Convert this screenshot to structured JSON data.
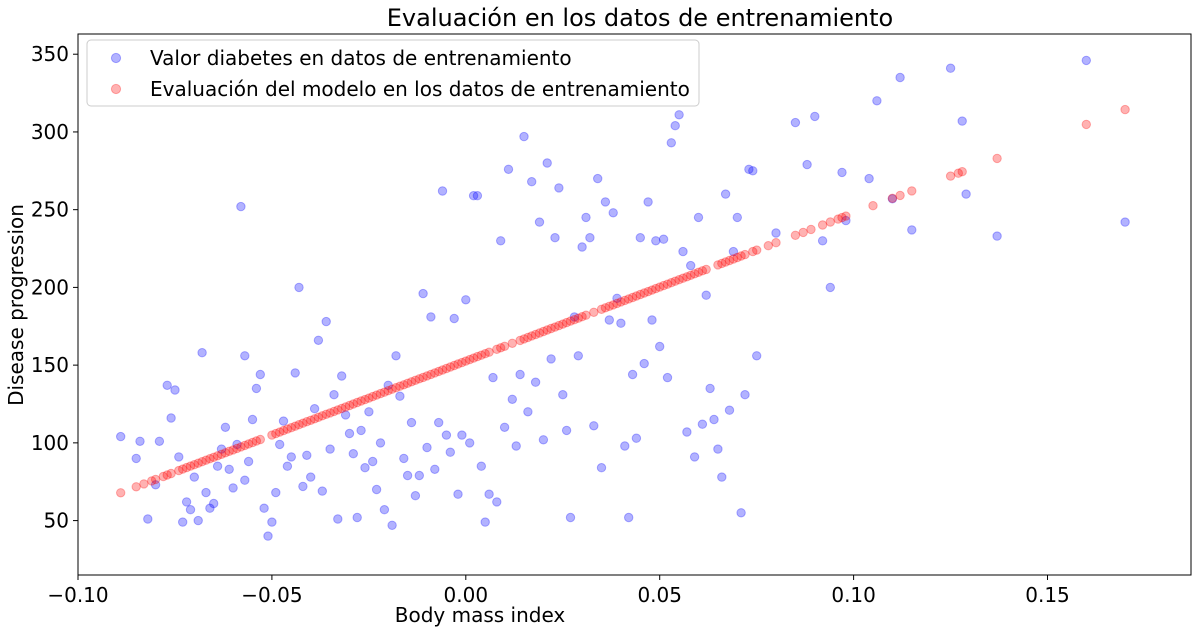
{
  "chart_data": {
    "type": "scatter",
    "title": "Evaluación en los datos de entrenamiento",
    "xlabel": "Body mass index",
    "ylabel": "Disease progression",
    "xlim": [
      -0.1,
      0.187
    ],
    "ylim": [
      15,
      363
    ],
    "xticks": [
      -0.1,
      -0.05,
      0.0,
      0.05,
      0.1,
      0.15
    ],
    "xtick_labels": [
      "−0.10",
      "−0.05",
      "0.00",
      "0.05",
      "0.10",
      "0.15"
    ],
    "yticks": [
      50,
      100,
      150,
      200,
      250,
      300,
      350
    ],
    "ytick_labels": [
      "50",
      "100",
      "150",
      "200",
      "250",
      "300",
      "350"
    ],
    "grid": false,
    "legend": {
      "placement": "top-left",
      "entries": [
        "Valor diabetes en datos de entrenamiento",
        "Evaluación del modelo en los datos de entrenamiento"
      ]
    },
    "series": [
      {
        "name": "Valor diabetes en datos de entrenamiento",
        "color": "#0000ff",
        "alpha": 0.3,
        "points": [
          [
            -0.089,
            104
          ],
          [
            -0.085,
            90
          ],
          [
            -0.084,
            101
          ],
          [
            -0.082,
            51
          ],
          [
            -0.08,
            73
          ],
          [
            -0.079,
            101
          ],
          [
            -0.077,
            137
          ],
          [
            -0.076,
            116
          ],
          [
            -0.075,
            134
          ],
          [
            -0.074,
            91
          ],
          [
            -0.073,
            49
          ],
          [
            -0.072,
            62
          ],
          [
            -0.071,
            57
          ],
          [
            -0.07,
            78
          ],
          [
            -0.069,
            50
          ],
          [
            -0.068,
            158
          ],
          [
            -0.067,
            68
          ],
          [
            -0.066,
            58
          ],
          [
            -0.065,
            61
          ],
          [
            -0.064,
            85
          ],
          [
            -0.063,
            96
          ],
          [
            -0.062,
            110
          ],
          [
            -0.061,
            83
          ],
          [
            -0.06,
            71
          ],
          [
            -0.059,
            99
          ],
          [
            -0.058,
            252
          ],
          [
            -0.057,
            76
          ],
          [
            -0.057,
            156
          ],
          [
            -0.056,
            88
          ],
          [
            -0.055,
            115
          ],
          [
            -0.054,
            135
          ],
          [
            -0.053,
            144
          ],
          [
            -0.052,
            58
          ],
          [
            -0.051,
            40
          ],
          [
            -0.05,
            49
          ],
          [
            -0.049,
            68
          ],
          [
            -0.048,
            99
          ],
          [
            -0.047,
            114
          ],
          [
            -0.046,
            85
          ],
          [
            -0.045,
            91
          ],
          [
            -0.044,
            145
          ],
          [
            -0.043,
            200
          ],
          [
            -0.042,
            72
          ],
          [
            -0.041,
            92
          ],
          [
            -0.04,
            78
          ],
          [
            -0.039,
            122
          ],
          [
            -0.038,
            166
          ],
          [
            -0.037,
            69
          ],
          [
            -0.036,
            178
          ],
          [
            -0.035,
            96
          ],
          [
            -0.034,
            131
          ],
          [
            -0.033,
            51
          ],
          [
            -0.032,
            143
          ],
          [
            -0.031,
            118
          ],
          [
            -0.03,
            106
          ],
          [
            -0.029,
            93
          ],
          [
            -0.028,
            52
          ],
          [
            -0.027,
            108
          ],
          [
            -0.026,
            84
          ],
          [
            -0.025,
            120
          ],
          [
            -0.024,
            88
          ],
          [
            -0.023,
            70
          ],
          [
            -0.022,
            100
          ],
          [
            -0.021,
            57
          ],
          [
            -0.02,
            137
          ],
          [
            -0.019,
            47
          ],
          [
            -0.018,
            156
          ],
          [
            -0.017,
            130
          ],
          [
            -0.016,
            90
          ],
          [
            -0.015,
            79
          ],
          [
            -0.014,
            113
          ],
          [
            -0.013,
            66
          ],
          [
            -0.012,
            79
          ],
          [
            -0.011,
            196
          ],
          [
            -0.01,
            97
          ],
          [
            -0.009,
            181
          ],
          [
            -0.008,
            83
          ],
          [
            -0.007,
            113
          ],
          [
            -0.006,
            262
          ],
          [
            -0.005,
            105
          ],
          [
            -0.004,
            94
          ],
          [
            -0.003,
            180
          ],
          [
            -0.002,
            67
          ],
          [
            -0.001,
            105
          ],
          [
            0.0,
            192
          ],
          [
            0.001,
            100
          ],
          [
            0.002,
            259
          ],
          [
            0.003,
            259
          ],
          [
            0.004,
            85
          ],
          [
            0.005,
            49
          ],
          [
            0.006,
            67
          ],
          [
            0.007,
            142
          ],
          [
            0.008,
            62
          ],
          [
            0.009,
            230
          ],
          [
            0.01,
            110
          ],
          [
            0.011,
            276
          ],
          [
            0.012,
            128
          ],
          [
            0.013,
            98
          ],
          [
            0.014,
            144
          ],
          [
            0.015,
            297
          ],
          [
            0.016,
            120
          ],
          [
            0.017,
            268
          ],
          [
            0.018,
            139
          ],
          [
            0.019,
            242
          ],
          [
            0.02,
            102
          ],
          [
            0.021,
            280
          ],
          [
            0.022,
            154
          ],
          [
            0.023,
            232
          ],
          [
            0.024,
            264
          ],
          [
            0.025,
            131
          ],
          [
            0.026,
            108
          ],
          [
            0.027,
            52
          ],
          [
            0.028,
            181
          ],
          [
            0.029,
            156
          ],
          [
            0.03,
            226
          ],
          [
            0.031,
            245
          ],
          [
            0.032,
            232
          ],
          [
            0.033,
            111
          ],
          [
            0.034,
            270
          ],
          [
            0.035,
            84
          ],
          [
            0.036,
            255
          ],
          [
            0.037,
            179
          ],
          [
            0.038,
            248
          ],
          [
            0.039,
            193
          ],
          [
            0.04,
            177
          ],
          [
            0.041,
            98
          ],
          [
            0.042,
            52
          ],
          [
            0.043,
            144
          ],
          [
            0.044,
            103
          ],
          [
            0.045,
            232
          ],
          [
            0.046,
            151
          ],
          [
            0.047,
            255
          ],
          [
            0.048,
            179
          ],
          [
            0.049,
            230
          ],
          [
            0.05,
            162
          ],
          [
            0.051,
            231
          ],
          [
            0.052,
            142
          ],
          [
            0.053,
            293
          ],
          [
            0.054,
            304
          ],
          [
            0.055,
            311
          ],
          [
            0.056,
            223
          ],
          [
            0.057,
            107
          ],
          [
            0.058,
            214
          ],
          [
            0.059,
            91
          ],
          [
            0.06,
            245
          ],
          [
            0.061,
            112
          ],
          [
            0.062,
            195
          ],
          [
            0.063,
            135
          ],
          [
            0.064,
            115
          ],
          [
            0.065,
            96
          ],
          [
            0.066,
            78
          ],
          [
            0.067,
            260
          ],
          [
            0.068,
            121
          ],
          [
            0.069,
            223
          ],
          [
            0.07,
            245
          ],
          [
            0.071,
            55
          ],
          [
            0.072,
            131
          ],
          [
            0.073,
            276
          ],
          [
            0.074,
            275
          ],
          [
            0.075,
            156
          ],
          [
            0.08,
            235
          ],
          [
            0.085,
            306
          ],
          [
            0.088,
            279
          ],
          [
            0.09,
            310
          ],
          [
            0.092,
            230
          ],
          [
            0.094,
            200
          ],
          [
            0.097,
            274
          ],
          [
            0.098,
            243
          ],
          [
            0.104,
            270
          ],
          [
            0.106,
            320
          ],
          [
            0.11,
            257
          ],
          [
            0.112,
            335
          ],
          [
            0.115,
            237
          ],
          [
            0.125,
            341
          ],
          [
            0.128,
            307
          ],
          [
            0.129,
            260
          ],
          [
            0.137,
            233
          ],
          [
            0.16,
            346
          ],
          [
            0.17,
            242
          ]
        ]
      },
      {
        "name": "Evaluación del modelo en los datos de entrenamiento",
        "color": "#ff0000",
        "alpha": 0.3,
        "line": {
          "slope": 951.7,
          "intercept": 152.6
        },
        "x": [
          -0.089,
          -0.085,
          -0.083,
          -0.081,
          -0.08,
          -0.078,
          -0.077,
          -0.076,
          -0.074,
          -0.073,
          -0.072,
          -0.071,
          -0.07,
          -0.069,
          -0.068,
          -0.067,
          -0.066,
          -0.065,
          -0.064,
          -0.063,
          -0.062,
          -0.061,
          -0.06,
          -0.059,
          -0.058,
          -0.057,
          -0.056,
          -0.055,
          -0.054,
          -0.053,
          -0.05,
          -0.049,
          -0.048,
          -0.047,
          -0.046,
          -0.045,
          -0.044,
          -0.043,
          -0.042,
          -0.041,
          -0.04,
          -0.039,
          -0.038,
          -0.037,
          -0.036,
          -0.035,
          -0.034,
          -0.033,
          -0.032,
          -0.031,
          -0.03,
          -0.029,
          -0.028,
          -0.027,
          -0.026,
          -0.025,
          -0.024,
          -0.023,
          -0.022,
          -0.021,
          -0.02,
          -0.019,
          -0.018,
          -0.017,
          -0.016,
          -0.015,
          -0.014,
          -0.013,
          -0.012,
          -0.011,
          -0.01,
          -0.009,
          -0.008,
          -0.007,
          -0.006,
          -0.005,
          -0.004,
          -0.003,
          -0.002,
          -0.001,
          0.0,
          0.001,
          0.002,
          0.003,
          0.004,
          0.005,
          0.006,
          0.008,
          0.009,
          0.01,
          0.012,
          0.014,
          0.015,
          0.016,
          0.017,
          0.018,
          0.019,
          0.02,
          0.021,
          0.022,
          0.023,
          0.024,
          0.025,
          0.026,
          0.027,
          0.028,
          0.029,
          0.03,
          0.031,
          0.033,
          0.035,
          0.036,
          0.037,
          0.038,
          0.039,
          0.04,
          0.041,
          0.042,
          0.043,
          0.044,
          0.045,
          0.046,
          0.047,
          0.048,
          0.049,
          0.05,
          0.051,
          0.052,
          0.053,
          0.054,
          0.055,
          0.056,
          0.057,
          0.058,
          0.059,
          0.06,
          0.061,
          0.062,
          0.065,
          0.066,
          0.067,
          0.068,
          0.069,
          0.07,
          0.071,
          0.072,
          0.074,
          0.075,
          0.078,
          0.08,
          0.085,
          0.087,
          0.089,
          0.092,
          0.094,
          0.096,
          0.097,
          0.098,
          0.105,
          0.11,
          0.112,
          0.115,
          0.125,
          0.127,
          0.128,
          0.137,
          0.16,
          0.17
        ]
      }
    ]
  }
}
